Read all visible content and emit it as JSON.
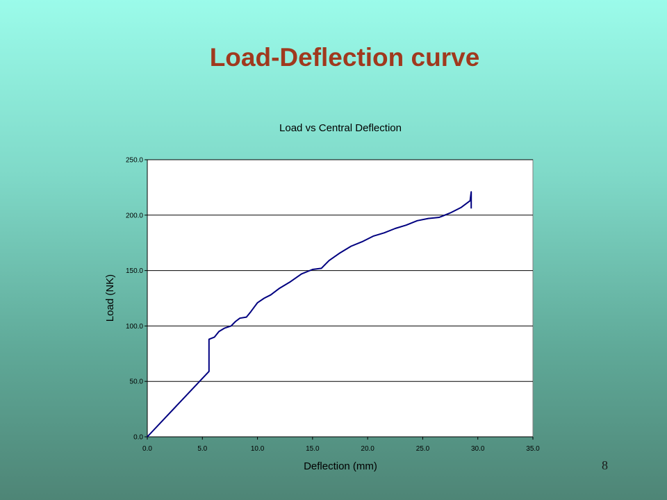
{
  "slide": {
    "title": "Load-Deflection curve",
    "page_number": "8",
    "title_color": "#a0391e"
  },
  "chart_data": {
    "type": "line",
    "title": "Load vs Central Deflection",
    "xlabel": "Deflection (mm)",
    "ylabel": "Load (NK)",
    "xlim": [
      0,
      35
    ],
    "ylim": [
      0,
      250
    ],
    "xticks": [
      0,
      5,
      10,
      15,
      20,
      25,
      30,
      35
    ],
    "yticks": [
      0,
      50,
      100,
      150,
      200,
      250
    ],
    "xtick_labels": [
      "0.0",
      "5.0",
      "10.0",
      "15.0",
      "20.0",
      "25.0",
      "30.0",
      "35.0"
    ],
    "ytick_labels": [
      "0.0",
      "50.0",
      "100.0",
      "150.0",
      "200.0",
      "250.0"
    ],
    "grid": "horizontal",
    "legend": "none",
    "line_color": "#000080",
    "series": [
      {
        "x": [
          0,
          5.6,
          5.6,
          5.6,
          6.1,
          6.5,
          7.0,
          7.6,
          8.0,
          8.4,
          9.0,
          9.4,
          10.0,
          10.6,
          11.2,
          12.0,
          13.0,
          14.0,
          15.0,
          15.8,
          16.5,
          17.5,
          18.5,
          19.5,
          20.5,
          21.5,
          22.5,
          23.5,
          24.5,
          25.5,
          26.5,
          27.5,
          28.5,
          29.3,
          29.4,
          29.4
        ],
        "y": [
          0,
          59,
          80,
          88,
          90,
          95,
          98,
          100,
          104,
          107,
          108,
          113,
          121,
          125,
          128,
          134,
          140,
          147,
          151,
          152,
          159,
          166,
          172,
          176,
          181,
          184,
          188,
          191,
          195,
          197,
          198,
          202,
          207,
          213,
          221,
          206
        ]
      }
    ]
  }
}
